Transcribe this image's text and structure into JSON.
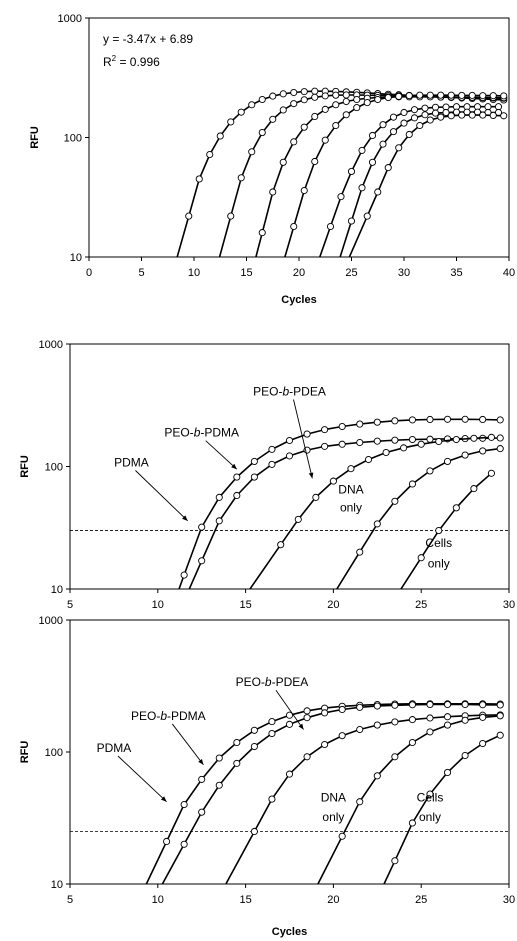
{
  "chart_data": [
    {
      "type": "line",
      "log_y": true,
      "xlim": [
        0,
        40
      ],
      "ylim": [
        10,
        1000
      ],
      "x_ticks": [
        "0",
        "5",
        "10",
        "15",
        "20",
        "25",
        "30",
        "35",
        "40"
      ],
      "y_ticks": [
        "10",
        "100",
        "1000"
      ],
      "xlabel": "Cycles",
      "ylabel": "RFU",
      "equation": "y = -3.47x + 6.89",
      "r2_label": "R",
      "r2_exp": "2",
      "r2_value": " = 0.996",
      "threshold": null,
      "series": [
        {
          "x": [
            9.5,
            10.5,
            11.5,
            12.5,
            13.5,
            14.5,
            15.5,
            16.5,
            17.5,
            18.5,
            19.5,
            20.5,
            21.5,
            22.5,
            23.5,
            24.5,
            25.5,
            26.5,
            27.5,
            28.5,
            29.5,
            30.5,
            31.5,
            32.5,
            33.5,
            34.5,
            35.5,
            36.5,
            37.5,
            38.5,
            39.5
          ],
          "y": [
            22,
            45,
            72,
            103,
            135,
            163,
            188,
            208,
            222,
            232,
            238,
            242,
            244,
            244,
            243,
            241,
            239,
            236,
            233,
            230,
            228,
            225,
            222,
            220,
            218,
            216,
            214,
            212,
            210,
            208,
            206
          ]
        },
        {
          "x": [
            13.5,
            14.5,
            15.5,
            16.5,
            17.5,
            18.5,
            19.5,
            20.5,
            21.5,
            22.5,
            23.5,
            24.5,
            25.5,
            26.5,
            27.5,
            28.5,
            29.5,
            30.5,
            31.5,
            32.5,
            33.5,
            34.5,
            35.5,
            36.5,
            37.5,
            38.5,
            39.5
          ],
          "y": [
            22,
            46,
            76,
            110,
            142,
            170,
            192,
            207,
            217,
            223,
            226,
            227,
            227,
            226,
            225,
            224,
            223,
            222,
            221,
            220,
            219,
            218,
            217,
            216,
            215,
            214,
            213
          ]
        },
        {
          "x": [
            16.5,
            17.5,
            18.5,
            19.5,
            20.5,
            21.5,
            22.5,
            23.5,
            24.5,
            25.5,
            26.5,
            27.5,
            28.5,
            29.5,
            30.5,
            31.5,
            32.5,
            33.5,
            34.5,
            35.5,
            36.5,
            37.5,
            38.5,
            39.5
          ],
          "y": [
            16,
            35,
            62,
            92,
            122,
            150,
            172,
            188,
            200,
            208,
            213,
            216,
            218,
            219,
            219,
            219,
            219,
            218,
            218,
            217,
            217,
            216,
            216,
            215
          ]
        },
        {
          "x": [
            19.5,
            20.5,
            21.5,
            22.5,
            23.5,
            24.5,
            25.5,
            26.5,
            27.5,
            28.5,
            29.5,
            30.5,
            31.5,
            32.5,
            33.5,
            34.5,
            35.5,
            36.5,
            37.5,
            38.5,
            39.5
          ],
          "y": [
            18,
            36,
            63,
            95,
            126,
            155,
            178,
            196,
            208,
            216,
            221,
            224,
            226,
            226,
            226,
            226,
            225,
            225,
            224,
            224,
            223
          ]
        },
        {
          "x": [
            23.0,
            24.0,
            25.0,
            26.0,
            27.0,
            28.0,
            29.0,
            30.0,
            31.0,
            32.0,
            33.0,
            34.0,
            35.0,
            36.0,
            37.0,
            38.0,
            39.0
          ],
          "y": [
            18,
            32,
            52,
            78,
            104,
            128,
            148,
            162,
            171,
            176,
            179,
            180,
            181,
            181,
            181,
            181,
            181
          ]
        },
        {
          "x": [
            25.0,
            26.0,
            27.0,
            28.0,
            29.0,
            30.0,
            31.0,
            32.0,
            33.0,
            34.0,
            35.0,
            36.0,
            37.0,
            38.0,
            39.0
          ],
          "y": [
            20,
            38,
            62,
            88,
            112,
            132,
            146,
            155,
            160,
            162,
            163,
            163,
            163,
            162,
            162
          ]
        },
        {
          "x": [
            26.5,
            27.5,
            28.5,
            29.5,
            30.5,
            31.5,
            32.5,
            33.5,
            34.5,
            35.5,
            36.5,
            37.5,
            38.5,
            39.5
          ],
          "y": [
            22,
            35,
            56,
            82,
            106,
            126,
            140,
            148,
            152,
            154,
            154,
            154,
            153,
            152
          ]
        }
      ],
      "annotations": []
    },
    {
      "type": "line",
      "log_y": true,
      "xlim": [
        5,
        30
      ],
      "ylim": [
        10,
        1000
      ],
      "x_ticks": [
        "5",
        "10",
        "15",
        "20",
        "25",
        "30"
      ],
      "y_ticks": [
        "10",
        "100",
        "1000"
      ],
      "xlabel": "",
      "ylabel": "RFU",
      "threshold": 30,
      "series": [
        {
          "x": [
            11.5,
            12.5,
            13.5,
            14.5,
            15.5,
            16.5,
            17.5,
            18.5,
            19.5,
            20.5,
            21.5,
            22.5,
            23.5,
            24.5,
            25.5,
            26.5,
            27.5,
            28.5,
            29.5
          ],
          "y": [
            13,
            32,
            56,
            82,
            110,
            138,
            163,
            184,
            200,
            212,
            222,
            230,
            236,
            240,
            242,
            243,
            243,
            242,
            240
          ]
        },
        {
          "x": [
            12.5,
            13.5,
            14.5,
            15.5,
            16.5,
            17.5,
            18.5,
            19.5,
            20.5,
            21.5,
            22.5,
            23.5,
            24.5,
            25.5,
            26.5,
            27.5,
            28.5,
            29.5
          ],
          "y": [
            17,
            36,
            58,
            82,
            104,
            122,
            136,
            146,
            152,
            157,
            161,
            164,
            166,
            167,
            168,
            169,
            170,
            171
          ]
        },
        {
          "x": [
            17.0,
            18.0,
            19.0,
            20.0,
            21.0,
            22.0,
            23.0,
            24.0,
            25.0,
            26.0,
            27.0,
            28.0,
            29.0
          ],
          "y": [
            23,
            37,
            56,
            76,
            96,
            114,
            130,
            142,
            152,
            160,
            166,
            170,
            173
          ]
        },
        {
          "x": [
            21.5,
            22.5,
            23.5,
            24.5,
            25.5,
            26.5,
            27.5,
            28.5,
            29.5
          ],
          "y": [
            20,
            34,
            52,
            72,
            92,
            110,
            124,
            134,
            140
          ]
        },
        {
          "x": [
            25.0,
            26.0,
            27.0,
            28.0,
            29.0
          ],
          "y": [
            18,
            30,
            46,
            66,
            88
          ]
        }
      ],
      "annotations": [
        {
          "text": "PDMA",
          "x": 8.5,
          "y": 100,
          "tx": 11.7,
          "ty": 36
        },
        {
          "text_pre": "PEO-",
          "text_it": "b",
          "text_post": "-PDMA",
          "x": 12.5,
          "y": 175,
          "tx": 14.5,
          "ty": 95
        },
        {
          "text_pre": "PEO-",
          "text_it": "b",
          "text_post": "-PDEA",
          "x": 17.5,
          "y": 380,
          "tx": 18.8,
          "ty": 80
        },
        {
          "text": "DNA",
          "x": 21.0,
          "y": 60
        },
        {
          "text": "only",
          "x": 21.0,
          "y": 43
        },
        {
          "text": "Cells",
          "x": 26.0,
          "y": 22
        },
        {
          "text": "only",
          "x": 26.0,
          "y": 15
        }
      ]
    },
    {
      "type": "line",
      "log_y": true,
      "xlim": [
        5,
        30
      ],
      "ylim": [
        10,
        1000
      ],
      "x_ticks": [
        "5",
        "10",
        "15",
        "20",
        "25",
        "30"
      ],
      "y_ticks": [
        "10",
        "100",
        "1000"
      ],
      "xlabel": "Cycles",
      "ylabel": "RFU",
      "threshold": 25,
      "series": [
        {
          "x": [
            10.5,
            11.5,
            12.5,
            13.5,
            14.5,
            15.5,
            16.5,
            17.5,
            18.5,
            19.5,
            20.5,
            21.5,
            22.5,
            23.5,
            24.5,
            25.5,
            26.5,
            27.5,
            28.5,
            29.5
          ],
          "y": [
            21,
            40,
            62,
            90,
            118,
            146,
            170,
            190,
            205,
            215,
            222,
            226,
            229,
            231,
            232,
            232,
            232,
            232,
            232,
            231
          ]
        },
        {
          "x": [
            11.5,
            12.5,
            13.5,
            14.5,
            15.5,
            16.5,
            17.5,
            18.5,
            19.5,
            20.5,
            21.5,
            22.5,
            23.5,
            24.5,
            25.5,
            26.5,
            27.5,
            28.5,
            29.5
          ],
          "y": [
            20,
            35,
            56,
            82,
            110,
            138,
            162,
            182,
            198,
            210,
            218,
            223,
            226,
            228,
            229,
            229,
            229,
            228,
            227
          ]
        },
        {
          "x": [
            15.5,
            16.5,
            17.5,
            18.5,
            19.5,
            20.5,
            21.5,
            22.5,
            23.5,
            24.5,
            25.5,
            26.5,
            27.5,
            28.5,
            29.5
          ],
          "y": [
            25,
            44,
            68,
            92,
            114,
            133,
            148,
            160,
            169,
            176,
            181,
            185,
            188,
            190,
            191
          ]
        },
        {
          "x": [
            20.5,
            21.5,
            22.5,
            23.5,
            24.5,
            25.5,
            26.5,
            27.5,
            28.5,
            29.5
          ],
          "y": [
            23,
            42,
            66,
            92,
            118,
            142,
            160,
            174,
            183,
            188
          ]
        },
        {
          "x": [
            23.5,
            24.5,
            25.5,
            26.5,
            27.5,
            28.5,
            29.5
          ],
          "y": [
            15,
            29,
            48,
            70,
            94,
            116,
            134
          ]
        }
      ],
      "annotations": [
        {
          "text": "PDMA",
          "x": 7.5,
          "y": 100,
          "tx": 10.5,
          "ty": 42
        },
        {
          "text_pre": "PEO-",
          "text_it": "b",
          "text_post": "-PDMA",
          "x": 10.6,
          "y": 175,
          "tx": 12.6,
          "ty": 80
        },
        {
          "text_pre": "PEO-",
          "text_it": "b",
          "text_post": "-PDEA",
          "x": 16.5,
          "y": 315,
          "tx": 18.3,
          "ty": 148
        },
        {
          "text": "DNA",
          "x": 20.0,
          "y": 42
        },
        {
          "text": "only",
          "x": 20.0,
          "y": 30
        },
        {
          "text": "Cells",
          "x": 25.5,
          "y": 42
        },
        {
          "text": "only",
          "x": 25.5,
          "y": 30
        }
      ]
    }
  ]
}
